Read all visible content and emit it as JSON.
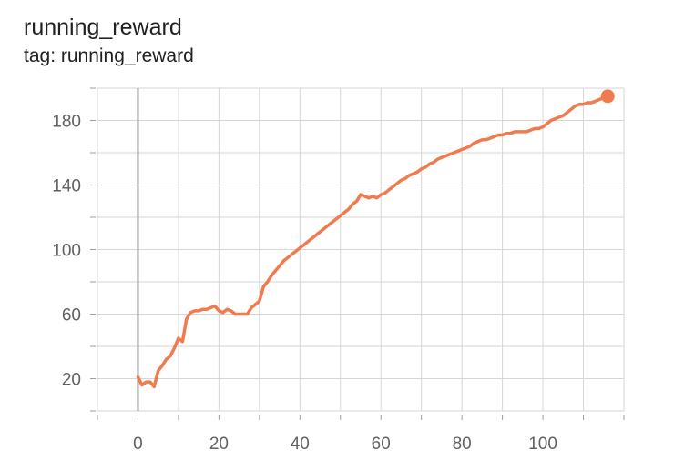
{
  "chart_data": {
    "type": "line",
    "title": "running_reward",
    "subtitle": "tag: running_reward",
    "xlabel": "",
    "ylabel": "",
    "xlim": [
      -10,
      120
    ],
    "ylim": [
      0,
      200
    ],
    "x_ticks": [
      0,
      20,
      40,
      60,
      80,
      100
    ],
    "y_ticks": [
      20,
      60,
      100,
      140,
      180
    ],
    "grid": true,
    "line_color": "#f07b4e",
    "axis_zero_color": "#9e9e9e",
    "series": [
      {
        "x": [
          0,
          1,
          2,
          3,
          4,
          5,
          6,
          7,
          8,
          9,
          10,
          11,
          12,
          13,
          14,
          15,
          16,
          17,
          18,
          19,
          20,
          21,
          22,
          23,
          24,
          25,
          26,
          27,
          28,
          29,
          30,
          31,
          32,
          33,
          34,
          35,
          36,
          37,
          38,
          39,
          40,
          41,
          42,
          43,
          44,
          45,
          46,
          47,
          48,
          49,
          50,
          51,
          52,
          53,
          54,
          55,
          56,
          57,
          58,
          59,
          60,
          61,
          62,
          63,
          64,
          65,
          66,
          67,
          68,
          69,
          70,
          71,
          72,
          73,
          74,
          75,
          76,
          77,
          78,
          79,
          80,
          81,
          82,
          83,
          84,
          85,
          86,
          87,
          88,
          89,
          90,
          91,
          92,
          93,
          94,
          95,
          96,
          97,
          98,
          99,
          100,
          101,
          102,
          103,
          104,
          105,
          106,
          107,
          108,
          109,
          110,
          111,
          112,
          113,
          114,
          115,
          116
        ],
        "values": [
          21,
          16,
          18,
          18,
          15,
          25,
          28,
          32,
          34,
          39,
          45,
          43,
          57,
          61,
          62,
          62,
          63,
          63,
          64,
          65,
          62,
          61,
          63,
          62,
          60,
          60,
          60,
          60,
          64,
          66,
          68,
          77,
          80,
          84,
          87,
          90,
          93,
          95,
          97,
          99,
          101,
          103,
          105,
          107,
          109,
          111,
          113,
          115,
          117,
          119,
          121,
          123,
          125,
          128,
          130,
          134,
          133,
          132,
          133,
          132,
          134,
          135,
          137,
          139,
          141,
          143,
          144,
          146,
          147,
          148,
          150,
          151,
          153,
          154,
          156,
          157,
          158,
          159,
          160,
          161,
          162,
          163,
          164,
          166,
          167,
          168,
          168,
          169,
          170,
          171,
          171,
          172,
          172,
          173,
          173,
          173,
          173,
          174,
          175,
          175,
          176,
          178,
          180,
          181,
          182,
          183,
          185,
          187,
          189,
          190,
          190,
          191,
          191,
          192,
          193,
          194,
          195
        ]
      }
    ]
  }
}
